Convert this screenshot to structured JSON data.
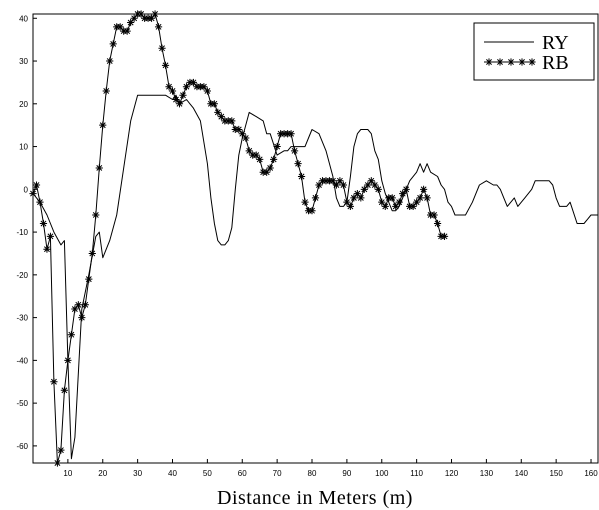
{
  "chart_data": {
    "type": "line",
    "title": "",
    "xlabel": "Distance in Meters (m)",
    "ylabel": "",
    "xlim": [
      0,
      162
    ],
    "ylim": [
      -64,
      41
    ],
    "grid": false,
    "legend_position": "top-right",
    "x_ticks": [
      10,
      20,
      30,
      40,
      50,
      60,
      70,
      80,
      90,
      100,
      110,
      120,
      130,
      140,
      150,
      160
    ],
    "y_ticks": [
      40,
      30,
      20,
      10,
      0,
      -10,
      -20,
      -30,
      -40,
      -50,
      -60
    ],
    "series": [
      {
        "name": "RY",
        "marker": "none",
        "color": "#000000",
        "points": [
          [
            0,
            -1
          ],
          [
            2,
            -3
          ],
          [
            4,
            -6
          ],
          [
            6,
            -10
          ],
          [
            8,
            -13
          ],
          [
            9,
            -12
          ],
          [
            10,
            -40
          ],
          [
            11,
            -63
          ],
          [
            12,
            -58
          ],
          [
            14,
            -28
          ],
          [
            16,
            -20
          ],
          [
            18,
            -11
          ],
          [
            19,
            -10
          ],
          [
            20,
            -16
          ],
          [
            22,
            -12
          ],
          [
            24,
            -6
          ],
          [
            26,
            5
          ],
          [
            28,
            16
          ],
          [
            30,
            22
          ],
          [
            34,
            22
          ],
          [
            38,
            22
          ],
          [
            40,
            21
          ],
          [
            41,
            22
          ],
          [
            42,
            20
          ],
          [
            44,
            21
          ],
          [
            45,
            20
          ],
          [
            46,
            19
          ],
          [
            48,
            16
          ],
          [
            50,
            6
          ],
          [
            51,
            -2
          ],
          [
            52,
            -8
          ],
          [
            53,
            -12
          ],
          [
            54,
            -13
          ],
          [
            55,
            -13
          ],
          [
            56,
            -12
          ],
          [
            57,
            -9
          ],
          [
            58,
            0
          ],
          [
            59,
            8
          ],
          [
            60,
            12
          ],
          [
            62,
            18
          ],
          [
            64,
            17
          ],
          [
            66,
            16
          ],
          [
            67,
            13
          ],
          [
            68,
            13
          ],
          [
            70,
            8
          ],
          [
            72,
            9
          ],
          [
            73,
            9
          ],
          [
            74,
            10
          ],
          [
            78,
            10
          ],
          [
            79,
            12
          ],
          [
            80,
            14
          ],
          [
            82,
            13
          ],
          [
            84,
            9
          ],
          [
            86,
            3
          ],
          [
            87,
            -2
          ],
          [
            88,
            -4
          ],
          [
            89,
            -4
          ],
          [
            90,
            -3
          ],
          [
            91,
            3
          ],
          [
            92,
            10
          ],
          [
            93,
            13
          ],
          [
            94,
            14
          ],
          [
            96,
            14
          ],
          [
            97,
            13
          ],
          [
            98,
            9
          ],
          [
            99,
            7
          ],
          [
            100,
            2
          ],
          [
            101,
            -1
          ],
          [
            102,
            -3
          ],
          [
            103,
            -5
          ],
          [
            104,
            -5
          ],
          [
            105,
            -4
          ],
          [
            106,
            -2
          ],
          [
            107,
            0
          ],
          [
            108,
            2
          ],
          [
            110,
            4
          ],
          [
            111,
            6
          ],
          [
            112,
            4
          ],
          [
            113,
            6
          ],
          [
            114,
            4
          ],
          [
            116,
            3
          ],
          [
            117,
            1
          ],
          [
            118,
            0
          ],
          [
            119,
            -3
          ],
          [
            120,
            -4
          ],
          [
            121,
            -6
          ],
          [
            124,
            -6
          ],
          [
            126,
            -3
          ],
          [
            127,
            -1
          ],
          [
            128,
            1
          ],
          [
            130,
            2
          ],
          [
            132,
            1
          ],
          [
            133,
            1
          ],
          [
            134,
            0
          ],
          [
            135,
            -2
          ],
          [
            136,
            -4
          ],
          [
            137,
            -3
          ],
          [
            138,
            -2
          ],
          [
            139,
            -4
          ],
          [
            140,
            -3
          ],
          [
            141,
            -2
          ],
          [
            143,
            0
          ],
          [
            144,
            2
          ],
          [
            148,
            2
          ],
          [
            149,
            1
          ],
          [
            150,
            -2
          ],
          [
            151,
            -4
          ],
          [
            152,
            -4
          ],
          [
            153,
            -4
          ],
          [
            154,
            -3
          ],
          [
            156,
            -8
          ],
          [
            158,
            -8
          ],
          [
            159,
            -7
          ],
          [
            160,
            -6
          ],
          [
            162,
            -6
          ]
        ]
      },
      {
        "name": "RB",
        "marker": "star",
        "color": "#000000",
        "points": [
          [
            0,
            -1
          ],
          [
            1,
            1
          ],
          [
            2,
            -3
          ],
          [
            3,
            -8
          ],
          [
            4,
            -14
          ],
          [
            5,
            -11
          ],
          [
            6,
            -45
          ],
          [
            7,
            -64
          ],
          [
            8,
            -61
          ],
          [
            9,
            -47
          ],
          [
            10,
            -40
          ],
          [
            11,
            -34
          ],
          [
            12,
            -28
          ],
          [
            13,
            -27
          ],
          [
            14,
            -30
          ],
          [
            15,
            -27
          ],
          [
            16,
            -21
          ],
          [
            17,
            -15
          ],
          [
            18,
            -6
          ],
          [
            19,
            5
          ],
          [
            20,
            15
          ],
          [
            21,
            23
          ],
          [
            22,
            30
          ],
          [
            23,
            34
          ],
          [
            24,
            38
          ],
          [
            25,
            38
          ],
          [
            26,
            37
          ],
          [
            27,
            37
          ],
          [
            28,
            39
          ],
          [
            29,
            40
          ],
          [
            30,
            41
          ],
          [
            31,
            41
          ],
          [
            32,
            40
          ],
          [
            33,
            40
          ],
          [
            34,
            40
          ],
          [
            35,
            41
          ],
          [
            36,
            38
          ],
          [
            37,
            33
          ],
          [
            38,
            29
          ],
          [
            39,
            24
          ],
          [
            40,
            23
          ],
          [
            41,
            21
          ],
          [
            42,
            20
          ],
          [
            43,
            22
          ],
          [
            44,
            24
          ],
          [
            45,
            25
          ],
          [
            46,
            25
          ],
          [
            47,
            24
          ],
          [
            48,
            24
          ],
          [
            49,
            24
          ],
          [
            50,
            23
          ],
          [
            51,
            20
          ],
          [
            52,
            20
          ],
          [
            53,
            18
          ],
          [
            54,
            17
          ],
          [
            55,
            16
          ],
          [
            56,
            16
          ],
          [
            57,
            16
          ],
          [
            58,
            14
          ],
          [
            59,
            14
          ],
          [
            60,
            13
          ],
          [
            61,
            12
          ],
          [
            62,
            9
          ],
          [
            63,
            8
          ],
          [
            64,
            8
          ],
          [
            65,
            7
          ],
          [
            66,
            4
          ],
          [
            67,
            4
          ],
          [
            68,
            5
          ],
          [
            69,
            7
          ],
          [
            70,
            10
          ],
          [
            71,
            13
          ],
          [
            72,
            13
          ],
          [
            73,
            13
          ],
          [
            74,
            13
          ],
          [
            75,
            9
          ],
          [
            76,
            6
          ],
          [
            77,
            3
          ],
          [
            78,
            -3
          ],
          [
            79,
            -5
          ],
          [
            80,
            -5
          ],
          [
            81,
            -2
          ],
          [
            82,
            1
          ],
          [
            83,
            2
          ],
          [
            84,
            2
          ],
          [
            85,
            2
          ],
          [
            86,
            2
          ],
          [
            87,
            1
          ],
          [
            88,
            2
          ],
          [
            89,
            1
          ],
          [
            90,
            -3
          ],
          [
            91,
            -4
          ],
          [
            92,
            -2
          ],
          [
            93,
            -1
          ],
          [
            94,
            -2
          ],
          [
            95,
            0
          ],
          [
            96,
            1
          ],
          [
            97,
            2
          ],
          [
            98,
            1
          ],
          [
            99,
            0
          ],
          [
            100,
            -3
          ],
          [
            101,
            -4
          ],
          [
            102,
            -2
          ],
          [
            103,
            -2
          ],
          [
            104,
            -4
          ],
          [
            105,
            -3
          ],
          [
            106,
            -1
          ],
          [
            107,
            0
          ],
          [
            108,
            -4
          ],
          [
            109,
            -4
          ],
          [
            110,
            -3
          ],
          [
            111,
            -2
          ],
          [
            112,
            0
          ],
          [
            113,
            -2
          ],
          [
            114,
            -6
          ],
          [
            115,
            -6
          ],
          [
            116,
            -8
          ],
          [
            117,
            -11
          ],
          [
            118,
            -11
          ]
        ]
      }
    ]
  }
}
